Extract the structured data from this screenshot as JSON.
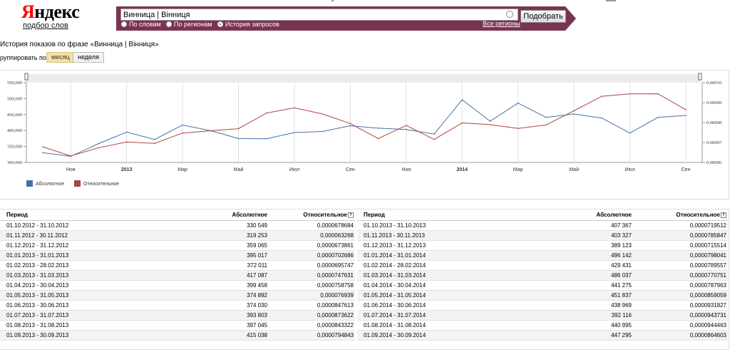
{
  "header": {
    "logo_first": "Я",
    "logo_rest": "ндекс",
    "subtitle": "подбор слов",
    "search_value": "Винница | Вінниця",
    "search_button": "Подобрать",
    "radios": [
      "По словам",
      "По регионам",
      "История запросов"
    ],
    "selected_radio": "История запросов",
    "regions_link": "Все регионы",
    "accent_color": "#7b3352"
  },
  "main": {
    "phrase_title": "История показов по фразе «Винница | Вінниця»",
    "group_label": "руппировать по:",
    "group_month": "месяц",
    "group_week": "неделя"
  },
  "chart_data": {
    "type": "line",
    "x": [
      "2012-10",
      "2012-11",
      "2012-12",
      "2013-01",
      "2013-02",
      "2013-03",
      "2013-04",
      "2013-05",
      "2013-06",
      "2013-07",
      "2013-08",
      "2013-09",
      "2013-10",
      "2013-11",
      "2013-12",
      "2014-01",
      "2014-02",
      "2014-03",
      "2014-04",
      "2014-05",
      "2014-06",
      "2014-07",
      "2014-08",
      "2014-09"
    ],
    "x_tick_labels": [
      "Ноя",
      "2013",
      "Мар",
      "Май",
      "Июл",
      "Сен",
      "Ноя",
      "2014",
      "Мар",
      "Май",
      "Июл",
      "Сен"
    ],
    "y_left_ticks": [
      "300,000",
      "350,000",
      "400,000",
      "450,000",
      "500,000",
      "550,000"
    ],
    "y_left_lim": [
      300000,
      550000
    ],
    "y_right_ticks": [
      "0.00006",
      "0.00007",
      "0.00008",
      "0.00009",
      "0.00010"
    ],
    "y_right_lim": [
      6e-05,
      0.0001
    ],
    "grid": true,
    "legend_placement": "bottom-left",
    "series": [
      {
        "name": "Абсолютное",
        "axis": "left",
        "color": "#4572a7",
        "values": [
          330549,
          319253,
          359065,
          395017,
          372011,
          417087,
          399458,
          374892,
          374030,
          393803,
          397045,
          415038,
          407367,
          403327,
          389123,
          496142,
          429431,
          486037,
          441275,
          451837,
          438969,
          392116,
          440995,
          447295
        ]
      },
      {
        "name": "Относительное",
        "axis": "right",
        "color": "#aa4643",
        "values": [
          6.78684e-05,
          6.3268e-05,
          6.73861e-05,
          7.02686e-05,
          6.95747e-05,
          7.47631e-05,
          7.58758e-05,
          7.6939e-05,
          8.47613e-05,
          8.73622e-05,
          8.43322e-05,
          7.94843e-05,
          7.19512e-05,
          7.85847e-05,
          7.15514e-05,
          7.98041e-05,
          7.89557e-05,
          7.70751e-05,
          7.87963e-05,
          8.59059e-05,
          9.31827e-05,
          9.43731e-05,
          9.44463e-05,
          8.64603e-05
        ]
      }
    ]
  },
  "table": {
    "headers": [
      "Период",
      "Абсолютное",
      "Относительное"
    ],
    "left_rows": [
      [
        "01.10.2012 - 31.10.2012",
        "330 549",
        "0,0000678684"
      ],
      [
        "01.11.2012 - 30.11.2012",
        "319 253",
        "0,000063268"
      ],
      [
        "01.12.2012 - 31.12.2012",
        "359 065",
        "0,0000673861"
      ],
      [
        "01.01.2013 - 31.01.2013",
        "395 017",
        "0,0000702686"
      ],
      [
        "01.02.2013 - 28.02.2013",
        "372 011",
        "0,0000695747"
      ],
      [
        "01.03.2013 - 31.03.2013",
        "417 087",
        "0,0000747631"
      ],
      [
        "01.04.2013 - 30.04.2013",
        "399 458",
        "0,0000758758"
      ],
      [
        "01.05.2013 - 31.05.2013",
        "374 892",
        "0,000076939"
      ],
      [
        "01.06.2013 - 30.06.2013",
        "374 030",
        "0,0000847613"
      ],
      [
        "01.07.2013 - 31.07.2013",
        "393 803",
        "0,0000873622"
      ],
      [
        "01.08.2013 - 31.08.2013",
        "397 045",
        "0,0000843322"
      ],
      [
        "01.09.2013 - 30.09.2013",
        "415 038",
        "0,0000794843"
      ]
    ],
    "right_rows": [
      [
        "01.10.2013 - 31.10.2013",
        "407 367",
        "0,0000719512"
      ],
      [
        "01.11.2013 - 30.11.2013",
        "403 327",
        "0,0000785847"
      ],
      [
        "01.12.2013 - 31.12.2013",
        "389 123",
        "0,0000715514"
      ],
      [
        "01.01.2014 - 31.01.2014",
        "496 142",
        "0,0000798041"
      ],
      [
        "01.02.2014 - 28.02.2014",
        "429 431",
        "0,0000789557"
      ],
      [
        "01.03.2014 - 31.03.2014",
        "486 037",
        "0,0000770751"
      ],
      [
        "01.04.2014 - 30.04.2014",
        "441 275",
        "0,0000787963"
      ],
      [
        "01.05.2014 - 31.05.2014",
        "451 837",
        "0,0000859059"
      ],
      [
        "01.06.2014 - 30.06.2014",
        "438 969",
        "0,0000931827"
      ],
      [
        "01.07.2014 - 31.07.2014",
        "392 116",
        "0,0000943731"
      ],
      [
        "01.08.2014 - 31.08.2014",
        "440 995",
        "0,0000944463"
      ],
      [
        "01.09.2014 - 30.09.2014",
        "447 295",
        "0,0000864603"
      ]
    ]
  }
}
